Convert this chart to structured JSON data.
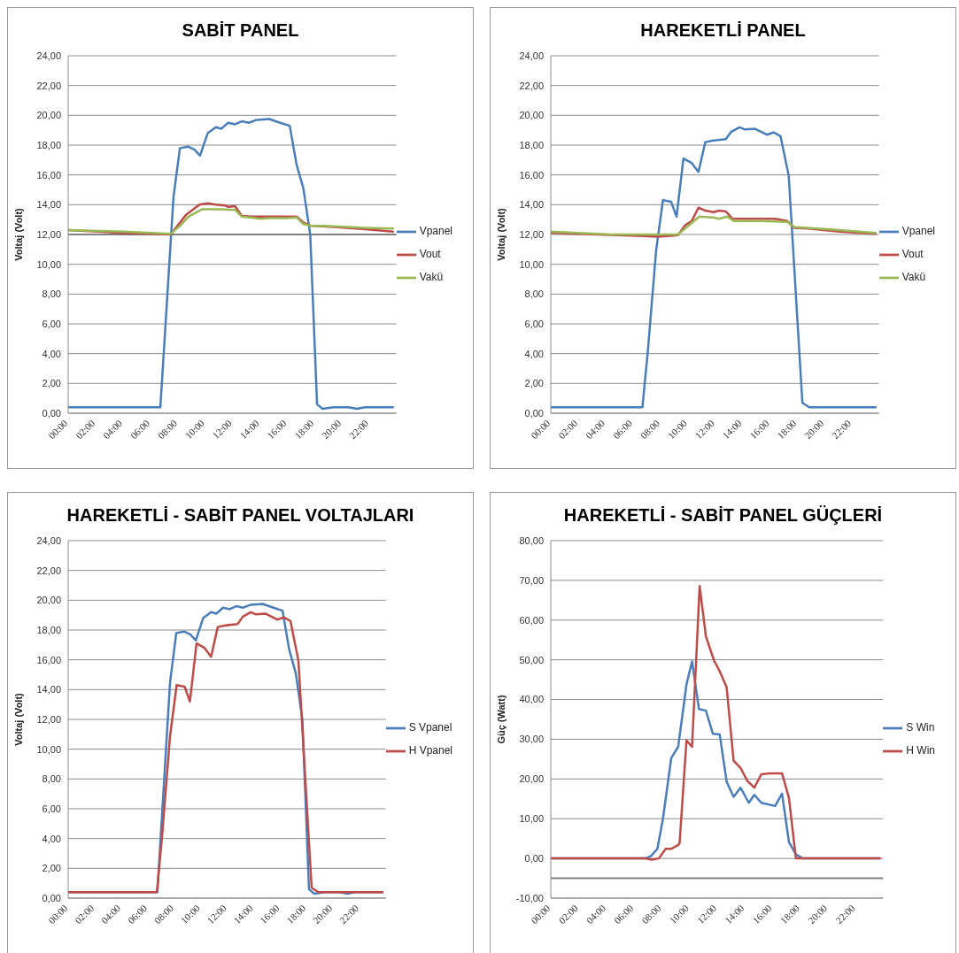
{
  "chart_data": [
    {
      "type": "line",
      "title": "SABİT PANEL",
      "ylabel": "Voltaj (Volt)",
      "xlim": [
        0,
        24
      ],
      "xticks": [
        {
          "value": 0,
          "label": "00:00"
        },
        {
          "value": 2,
          "label": "02:00"
        },
        {
          "value": 4,
          "label": "04:00"
        },
        {
          "value": 6,
          "label": "06:00"
        },
        {
          "value": 8,
          "label": "08:00"
        },
        {
          "value": 10,
          "label": "10:00"
        },
        {
          "value": 12,
          "label": "12:00"
        },
        {
          "value": 14,
          "label": "14:00"
        },
        {
          "value": 16,
          "label": "16:00"
        },
        {
          "value": 18,
          "label": "18:00"
        },
        {
          "value": 20,
          "label": "20:00"
        },
        {
          "value": 22,
          "label": "22:00"
        }
      ],
      "ylim": [
        0,
        24
      ],
      "yticks": [
        {
          "value": 0,
          "label": "0,00"
        },
        {
          "value": 2,
          "label": "2,00"
        },
        {
          "value": 4,
          "label": "4,00"
        },
        {
          "value": 6,
          "label": "6,00"
        },
        {
          "value": 8,
          "label": "8,00"
        },
        {
          "value": 10,
          "label": "10,00"
        },
        {
          "value": 12,
          "label": "12,00"
        },
        {
          "value": 14,
          "label": "14,00"
        },
        {
          "value": 16,
          "label": "16,00"
        },
        {
          "value": 18,
          "label": "18,00"
        },
        {
          "value": 20,
          "label": "20,00"
        },
        {
          "value": 22,
          "label": "22,00"
        },
        {
          "value": 24,
          "label": "24,00"
        }
      ],
      "grid": "y",
      "legend": "right",
      "marker": "none",
      "ref_lines": [
        {
          "axis": "y",
          "value": 12,
          "color": "#808080"
        }
      ],
      "series": [
        {
          "name": "Vpanel",
          "color": "#4a7ebb",
          "x": [
            0,
            6.74,
            7.7,
            8.17,
            8.76,
            9.24,
            9.64,
            10.2,
            10.8,
            11.2,
            11.7,
            12.2,
            12.7,
            13.2,
            13.8,
            14.7,
            15.5,
            16.2,
            16.7,
            17.2,
            17.7,
            18.2,
            18.6,
            19.4,
            20.5,
            21.1,
            21.7,
            23.75
          ],
          "values": [
            0.4,
            0.4,
            14.5,
            17.8,
            17.9,
            17.7,
            17.3,
            18.8,
            19.2,
            19.1,
            19.5,
            19.4,
            19.6,
            19.5,
            19.7,
            19.75,
            19.5,
            19.3,
            16.7,
            15.1,
            12.0,
            0.6,
            0.3,
            0.4,
            0.4,
            0.3,
            0.4,
            0.4
          ]
        },
        {
          "name": "Vout",
          "color": "#be4b48",
          "x": [
            0,
            4,
            7.5,
            8.6,
            9.6,
            10.2,
            10.8,
            11.5,
            11.7,
            12.2,
            12.7,
            13.4,
            14.6,
            16.0,
            16.7,
            17.2,
            17.7,
            19.4,
            21.7,
            23.75
          ],
          "values": [
            12.3,
            12.1,
            12.0,
            13.3,
            14.0,
            14.1,
            14.0,
            13.95,
            13.85,
            13.9,
            13.25,
            13.2,
            13.2,
            13.2,
            13.2,
            12.8,
            12.6,
            12.5,
            12.35,
            12.2
          ]
        },
        {
          "name": "Vakü",
          "color": "#98b954",
          "x": [
            0,
            4,
            7.5,
            8.2,
            8.8,
            9.8,
            11.0,
            12.2,
            12.7,
            14.1,
            14.6,
            16.0,
            16.7,
            17.2,
            17.7,
            19.4,
            21.7,
            23.75
          ],
          "values": [
            12.3,
            12.2,
            12.05,
            12.6,
            13.2,
            13.7,
            13.7,
            13.65,
            13.2,
            13.05,
            13.1,
            13.1,
            13.15,
            12.7,
            12.6,
            12.55,
            12.45,
            12.4
          ]
        }
      ]
    },
    {
      "type": "line",
      "title": "HAREKETLİ PANEL",
      "ylabel": "Voltaj (Volt)",
      "xlim": [
        0,
        24
      ],
      "xticks": [
        {
          "value": 0,
          "label": "00:00"
        },
        {
          "value": 2,
          "label": "02:00"
        },
        {
          "value": 4,
          "label": "04:00"
        },
        {
          "value": 6,
          "label": "06:00"
        },
        {
          "value": 8,
          "label": "08:00"
        },
        {
          "value": 10,
          "label": "10:00"
        },
        {
          "value": 12,
          "label": "12:00"
        },
        {
          "value": 14,
          "label": "14:00"
        },
        {
          "value": 16,
          "label": "16:00"
        },
        {
          "value": 18,
          "label": "18:00"
        },
        {
          "value": 20,
          "label": "20:00"
        },
        {
          "value": 22,
          "label": "22:00"
        }
      ],
      "ylim": [
        0,
        24
      ],
      "yticks": [
        {
          "value": 0,
          "label": "0,00"
        },
        {
          "value": 2,
          "label": "2,00"
        },
        {
          "value": 4,
          "label": "4,00"
        },
        {
          "value": 6,
          "label": "6,00"
        },
        {
          "value": 8,
          "label": "8,00"
        },
        {
          "value": 10,
          "label": "10,00"
        },
        {
          "value": 12,
          "label": "12,00"
        },
        {
          "value": 14,
          "label": "14,00"
        },
        {
          "value": 16,
          "label": "16,00"
        },
        {
          "value": 18,
          "label": "18,00"
        },
        {
          "value": 20,
          "label": "20,00"
        },
        {
          "value": 22,
          "label": "22,00"
        },
        {
          "value": 24,
          "label": "24,00"
        }
      ],
      "grid": "y",
      "legend": "right",
      "marker": "none",
      "series": [
        {
          "name": "Vpanel",
          "color": "#4a7ebb",
          "x": [
            0,
            6.7,
            7.1,
            7.7,
            8.2,
            8.8,
            9.2,
            9.7,
            10.3,
            10.8,
            11.3,
            11.8,
            12.8,
            13.2,
            13.8,
            14.2,
            14.9,
            15.8,
            16.3,
            16.8,
            17.4,
            18.4,
            18.9,
            23.75
          ],
          "values": [
            0.4,
            0.4,
            4.2,
            10.9,
            14.3,
            14.2,
            13.2,
            17.1,
            16.8,
            16.2,
            18.2,
            18.3,
            18.4,
            18.9,
            19.2,
            19.05,
            19.1,
            18.7,
            18.85,
            18.6,
            15.95,
            0.7,
            0.4,
            0.4
          ]
        },
        {
          "name": "Vout",
          "color": "#be4b48",
          "x": [
            0,
            6.8,
            7.8,
            9.3,
            9.8,
            10.3,
            10.8,
            11.3,
            11.9,
            12.3,
            12.8,
            13.3,
            14.4,
            16.4,
            17.3,
            17.8,
            18.8,
            21.1,
            23.75
          ],
          "values": [
            12.1,
            11.9,
            11.85,
            11.95,
            12.6,
            12.9,
            13.8,
            13.6,
            13.5,
            13.6,
            13.55,
            13.05,
            13.05,
            13.05,
            12.9,
            12.45,
            12.4,
            12.2,
            12.05
          ]
        },
        {
          "name": "Vakü",
          "color": "#98b954",
          "x": [
            0,
            4.4,
            7.7,
            9.3,
            10.2,
            10.85,
            11.8,
            12.3,
            12.9,
            13.4,
            15.4,
            17.3,
            17.8,
            21.1,
            23.75
          ],
          "values": [
            12.2,
            12.0,
            12.0,
            12.0,
            12.7,
            13.2,
            13.15,
            13.05,
            13.2,
            12.9,
            12.9,
            12.85,
            12.5,
            12.3,
            12.1
          ]
        }
      ]
    },
    {
      "type": "line",
      "title": "HAREKETLİ - SABİT PANEL VOLTAJLARI",
      "ylabel": "Voltaj (Volt)",
      "xlim": [
        0,
        24
      ],
      "xticks": [
        {
          "value": 0,
          "label": "00:00"
        },
        {
          "value": 2,
          "label": "02:00"
        },
        {
          "value": 4,
          "label": "04:00"
        },
        {
          "value": 6,
          "label": "06:00"
        },
        {
          "value": 8,
          "label": "08:00"
        },
        {
          "value": 10,
          "label": "10:00"
        },
        {
          "value": 12,
          "label": "12:00"
        },
        {
          "value": 14,
          "label": "14:00"
        },
        {
          "value": 16,
          "label": "16:00"
        },
        {
          "value": 18,
          "label": "18:00"
        },
        {
          "value": 20,
          "label": "20:00"
        },
        {
          "value": 22,
          "label": "22:00"
        }
      ],
      "ylim": [
        0,
        24
      ],
      "yticks": [
        {
          "value": 0,
          "label": "0,00"
        },
        {
          "value": 2,
          "label": "2,00"
        },
        {
          "value": 4,
          "label": "4,00"
        },
        {
          "value": 6,
          "label": "6,00"
        },
        {
          "value": 8,
          "label": "8,00"
        },
        {
          "value": 10,
          "label": "10,00"
        },
        {
          "value": 12,
          "label": "12,00"
        },
        {
          "value": 14,
          "label": "14,00"
        },
        {
          "value": 16,
          "label": "16,00"
        },
        {
          "value": 18,
          "label": "18,00"
        },
        {
          "value": 20,
          "label": "20,00"
        },
        {
          "value": 22,
          "label": "22,00"
        },
        {
          "value": 24,
          "label": "24,00"
        }
      ],
      "grid": "y",
      "legend": "right",
      "marker": "none",
      "series": [
        {
          "name": "S Vpanel",
          "color": "#4a7ebb",
          "x": [
            0,
            6.74,
            7.7,
            8.17,
            8.76,
            9.24,
            9.64,
            10.2,
            10.8,
            11.2,
            11.7,
            12.2,
            12.7,
            13.2,
            13.8,
            14.7,
            15.5,
            16.2,
            16.7,
            17.2,
            17.7,
            18.2,
            18.6,
            19.4,
            20.5,
            21.1,
            21.7,
            23.75
          ],
          "values": [
            0.4,
            0.4,
            14.5,
            17.8,
            17.9,
            17.7,
            17.3,
            18.8,
            19.2,
            19.1,
            19.5,
            19.4,
            19.6,
            19.5,
            19.7,
            19.75,
            19.5,
            19.3,
            16.7,
            15.1,
            12.0,
            0.6,
            0.3,
            0.4,
            0.4,
            0.3,
            0.4,
            0.4
          ]
        },
        {
          "name": "H Vpanel",
          "color": "#be4b48",
          "x": [
            0,
            6.7,
            7.1,
            7.7,
            8.2,
            8.8,
            9.2,
            9.7,
            10.3,
            10.8,
            11.3,
            11.8,
            12.8,
            13.2,
            13.8,
            14.2,
            14.9,
            15.8,
            16.3,
            16.8,
            17.4,
            18.4,
            18.9,
            23.75
          ],
          "values": [
            0.4,
            0.4,
            4.2,
            10.9,
            14.3,
            14.2,
            13.2,
            17.1,
            16.8,
            16.2,
            18.2,
            18.3,
            18.4,
            18.9,
            19.2,
            19.05,
            19.1,
            18.7,
            18.85,
            18.6,
            15.95,
            0.7,
            0.4,
            0.4
          ]
        }
      ]
    },
    {
      "type": "line",
      "title": "HAREKETLİ - SABİT PANEL GÜÇLERİ",
      "ylabel": "Güç (Watt)",
      "xlim": [
        0,
        24
      ],
      "xticks": [
        {
          "value": 0,
          "label": "00:00"
        },
        {
          "value": 2,
          "label": "02:00"
        },
        {
          "value": 4,
          "label": "04:00"
        },
        {
          "value": 6,
          "label": "06:00"
        },
        {
          "value": 8,
          "label": "08:00"
        },
        {
          "value": 10,
          "label": "10:00"
        },
        {
          "value": 12,
          "label": "12:00"
        },
        {
          "value": 14,
          "label": "14:00"
        },
        {
          "value": 16,
          "label": "16:00"
        },
        {
          "value": 18,
          "label": "18:00"
        },
        {
          "value": 20,
          "label": "20:00"
        },
        {
          "value": 22,
          "label": "22:00"
        }
      ],
      "ylim": [
        -10,
        80
      ],
      "yticks": [
        {
          "value": -10,
          "label": "-10,00"
        },
        {
          "value": 0,
          "label": "0,00"
        },
        {
          "value": 10,
          "label": "10,00"
        },
        {
          "value": 20,
          "label": "20,00"
        },
        {
          "value": 30,
          "label": "30,00"
        },
        {
          "value": 40,
          "label": "40,00"
        },
        {
          "value": 50,
          "label": "50,00"
        },
        {
          "value": 60,
          "label": "60,00"
        },
        {
          "value": 70,
          "label": "70,00"
        },
        {
          "value": 80,
          "label": "80,00"
        }
      ],
      "grid": "y",
      "legend": "right",
      "marker": "none",
      "ref_lines": [
        {
          "axis": "y",
          "value": -5,
          "color": "#808080"
        }
      ],
      "series": [
        {
          "name": "S Win",
          "color": "#4a7ebb",
          "x": [
            0,
            6.8,
            7.2,
            7.7,
            8.1,
            8.7,
            9.2,
            9.8,
            10.2,
            10.7,
            11.2,
            11.7,
            12.2,
            12.7,
            13.2,
            13.7,
            14.3,
            14.7,
            15.2,
            16.2,
            16.7,
            17.2,
            17.7,
            18.2,
            23.75
          ],
          "values": [
            0,
            0,
            0.5,
            2.4,
            10,
            25.3,
            28.1,
            43.8,
            49.6,
            37.6,
            37.2,
            31.4,
            31.2,
            19.3,
            15.5,
            17.8,
            14.0,
            16.0,
            14.0,
            13.2,
            16.3,
            4.1,
            1.0,
            0,
            0
          ]
        },
        {
          "name": "H Win",
          "color": "#be4b48",
          "x": [
            0,
            6.8,
            7.3,
            7.8,
            8.3,
            8.7,
            9.2,
            9.3,
            9.8,
            10.2,
            10.75,
            11.2,
            11.8,
            12.2,
            12.7,
            13.2,
            13.7,
            14.2,
            14.7,
            15.2,
            15.8,
            16.7,
            17.2,
            17.7,
            23.75
          ],
          "values": [
            0,
            0,
            -0.3,
            0,
            2.4,
            2.4,
            3.4,
            3.8,
            29.7,
            28.1,
            68.6,
            55.9,
            49.7,
            47.1,
            43.1,
            24.6,
            22.8,
            19.5,
            17.8,
            21.2,
            21.4,
            21.4,
            15.2,
            0,
            0
          ]
        }
      ]
    }
  ]
}
